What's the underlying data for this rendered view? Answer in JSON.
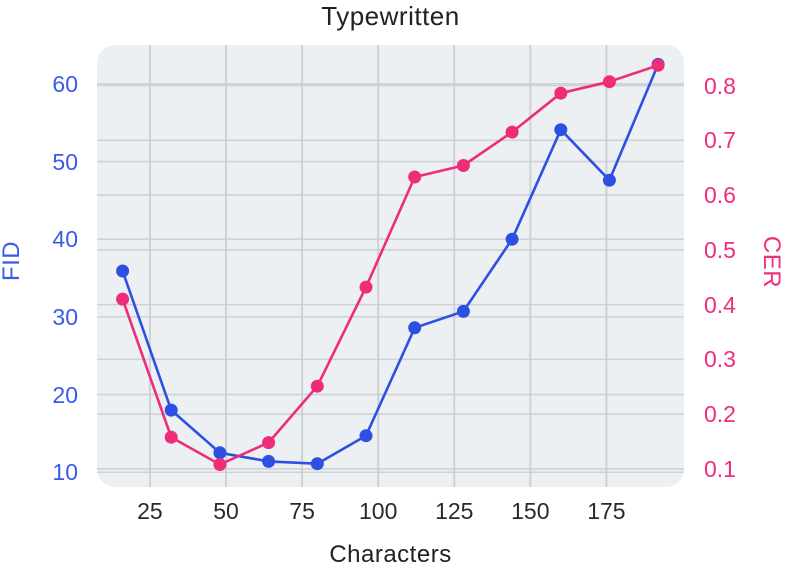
{
  "chart_data": {
    "type": "line",
    "title": "Typewritten",
    "xlabel": "Characters",
    "x": [
      16,
      32,
      48,
      64,
      80,
      96,
      112,
      128,
      144,
      160,
      176,
      192
    ],
    "series": [
      {
        "name": "FID",
        "axis": "left",
        "color": "#2e50e2",
        "marker": "circle",
        "values": [
          35.9,
          18.0,
          12.5,
          11.4,
          11.1,
          14.7,
          28.6,
          30.7,
          40.0,
          54.1,
          47.6,
          62.5
        ]
      },
      {
        "name": "CER",
        "axis": "right",
        "color": "#ee2c79",
        "marker": "circle",
        "values": [
          0.41,
          0.158,
          0.108,
          0.148,
          0.251,
          0.432,
          0.633,
          0.654,
          0.715,
          0.786,
          0.807,
          0.837
        ]
      }
    ],
    "axes": {
      "x": {
        "label": "Characters",
        "ticks": [
          25,
          50,
          75,
          100,
          125,
          150,
          175
        ],
        "range": [
          7.6,
          200.5
        ],
        "text_color": "#2a2a2a"
      },
      "left": {
        "label": "FID",
        "ticks": [
          10,
          20,
          30,
          40,
          50,
          60
        ],
        "range": [
          8.1,
          65.0
        ],
        "text_color": "#3a5ae9"
      },
      "right": {
        "label": "CER",
        "ticks": [
          0.1,
          0.2,
          0.3,
          0.4,
          0.5,
          0.6,
          0.7,
          0.8
        ],
        "range": [
          0.067,
          0.874
        ],
        "text_color": "#f02c7d"
      }
    },
    "grid": true,
    "legend_position": "none",
    "plot_bg_color": "#edf0f3",
    "grid_color": "#c8ccd0",
    "page_bg_color": "#ffffff"
  }
}
